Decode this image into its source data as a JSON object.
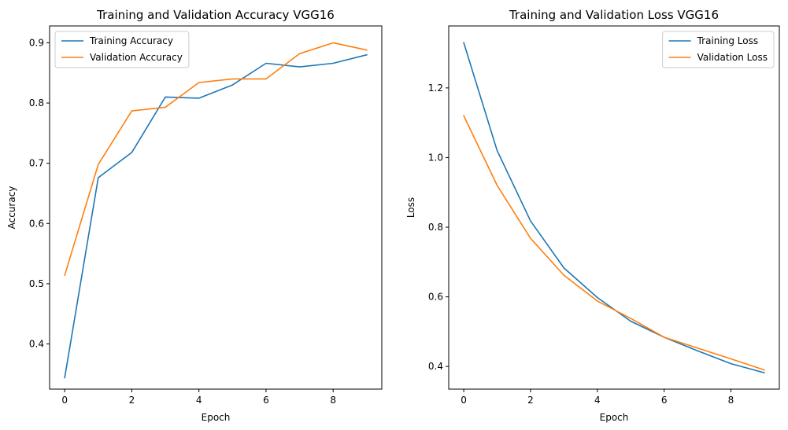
{
  "chart_data": [
    {
      "type": "line",
      "title": "Training and Validation Accuracy VGG16",
      "xlabel": "Epoch",
      "ylabel": "Accuracy",
      "x": [
        0,
        1,
        2,
        3,
        4,
        5,
        6,
        7,
        8,
        9
      ],
      "xlim": [
        -0.45,
        9.45
      ],
      "ylim": [
        0.325,
        0.928
      ],
      "xticks": [
        0,
        2,
        4,
        6,
        8
      ],
      "yticks": [
        0.4,
        0.5,
        0.6,
        0.7,
        0.8,
        0.9
      ],
      "xtick_labels": [
        "0",
        "2",
        "4",
        "6",
        "8"
      ],
      "ytick_labels": [
        "0.4",
        "0.5",
        "0.6",
        "0.7",
        "0.8",
        "0.9"
      ],
      "legend_position": "top-left",
      "grid": false,
      "series": [
        {
          "name": "Training Accuracy",
          "color": "#1f77b4",
          "values": [
            0.344,
            0.676,
            0.718,
            0.81,
            0.808,
            0.83,
            0.866,
            0.86,
            0.866,
            0.88
          ]
        },
        {
          "name": "Validation Accuracy",
          "color": "#ff7f0e",
          "values": [
            0.514,
            0.698,
            0.787,
            0.793,
            0.834,
            0.84,
            0.84,
            0.882,
            0.9,
            0.888
          ]
        }
      ]
    },
    {
      "type": "line",
      "title": "Training and Validation Loss VGG16",
      "xlabel": "Epoch",
      "ylabel": "Loss",
      "x": [
        0,
        1,
        2,
        3,
        4,
        5,
        6,
        7,
        8,
        9
      ],
      "xlim": [
        -0.45,
        9.45
      ],
      "ylim": [
        0.335,
        1.378
      ],
      "xticks": [
        0,
        2,
        4,
        6,
        8
      ],
      "yticks": [
        0.4,
        0.6,
        0.8,
        1.0,
        1.2
      ],
      "xtick_labels": [
        "0",
        "2",
        "4",
        "6",
        "8"
      ],
      "ytick_labels": [
        "0.4",
        "0.6",
        "0.8",
        "1.0",
        "1.2"
      ],
      "legend_position": "top-right",
      "grid": false,
      "series": [
        {
          "name": "Training Loss",
          "color": "#1f77b4",
          "values": [
            1.33,
            1.02,
            0.818,
            0.683,
            0.598,
            0.53,
            0.484,
            0.445,
            0.408,
            0.382
          ]
        },
        {
          "name": "Validation Loss",
          "color": "#ff7f0e",
          "values": [
            1.12,
            0.92,
            0.768,
            0.662,
            0.588,
            0.538,
            0.484,
            0.453,
            0.422,
            0.39
          ]
        }
      ]
    }
  ]
}
